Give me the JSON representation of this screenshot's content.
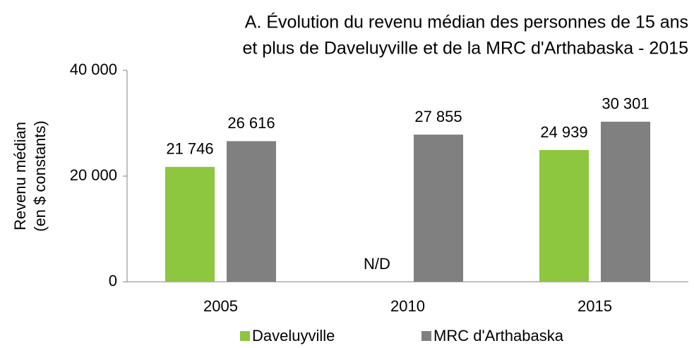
{
  "chart_data": {
    "type": "bar",
    "title": [
      "A. Évolution du revenu médian des personnes de 15 ans",
      "et plus de Daveluyville et de la MRC d'Arthabaska - 2015"
    ],
    "y_label": [
      "Revenu médian",
      "(en $ constants)"
    ],
    "categories": [
      "2005",
      "2010",
      "2015"
    ],
    "series": [
      {
        "name": "Daveluyville",
        "color": "#8dc63f",
        "values": [
          21746,
          null,
          24939
        ],
        "value_labels": [
          "21 746",
          "N/D",
          "24 939"
        ]
      },
      {
        "name": "MRC d'Arthabaska",
        "color": "#808080",
        "values": [
          26616,
          27855,
          30301
        ],
        "value_labels": [
          "26 616",
          "27 855",
          "30 301"
        ]
      }
    ],
    "ylim": [
      0,
      40000
    ],
    "yticks": [
      0,
      {
        "value": 20000,
        "label": "20 000"
      },
      {
        "value": 40000,
        "label": "40 000"
      }
    ],
    "grid": false,
    "legend": "bottom"
  }
}
